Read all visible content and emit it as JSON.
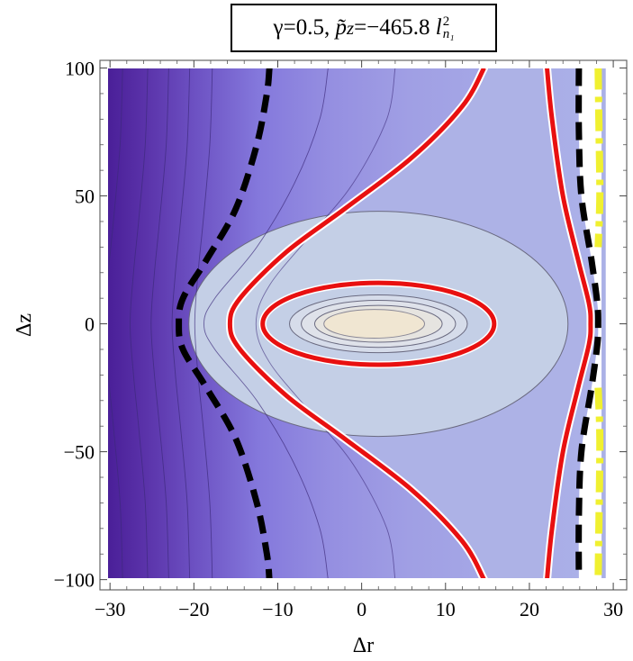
{
  "chart_data": {
    "type": "contour",
    "title": "γ=0.5, p̃z=−465.8 l²n₁",
    "title_parts": {
      "gamma": "γ=0.5,",
      "p": "p̃",
      "p_sub": "z",
      "p_value": "=−465.8",
      "l": "l",
      "l_sup": "2",
      "l_sub": "n₁"
    },
    "xlabel": "Δr",
    "ylabel": "Δz",
    "xlim": [
      -31.2,
      31.6
    ],
    "ylim": [
      -104,
      103
    ],
    "xticks": [
      {
        "v": -30,
        "label": "−30"
      },
      {
        "v": -20,
        "label": "−20"
      },
      {
        "v": -10,
        "label": "−10"
      },
      {
        "v": 0,
        "label": "0"
      },
      {
        "v": 10,
        "label": "10"
      },
      {
        "v": 20,
        "label": "20"
      },
      {
        "v": 30,
        "label": "30"
      }
    ],
    "yticks": [
      {
        "v": 100,
        "label": "100"
      },
      {
        "v": 50,
        "label": "50"
      },
      {
        "v": 0,
        "label": "0"
      },
      {
        "v": -50,
        "label": "−50"
      },
      {
        "v": -100,
        "label": "−100"
      }
    ],
    "colors": {
      "band_dark": "#4a22a0",
      "band_mid": "#8f86e0",
      "band_light": "#adb2e6",
      "band_center": "#c4cfe6",
      "core": "#f0e6d2",
      "red": "#e81010",
      "black": "#000000",
      "yellow": "#f0f030"
    },
    "curves": {
      "black_dashed_left": [
        [
          -11,
          100
        ],
        [
          -11.3,
          90
        ],
        [
          -12.5,
          70
        ],
        [
          -15,
          45
        ],
        [
          -18.5,
          25
        ],
        [
          -21.3,
          10
        ],
        [
          -21.8,
          0
        ],
        [
          -21.3,
          -10
        ],
        [
          -18.5,
          -25
        ],
        [
          -15,
          -45
        ],
        [
          -12.5,
          -70
        ],
        [
          -11.3,
          -90
        ],
        [
          -11,
          -100
        ]
      ],
      "red_outer_left": [
        [
          14.6,
          100
        ],
        [
          12,
          85
        ],
        [
          6,
          65
        ],
        [
          -2,
          45
        ],
        [
          -9,
          28
        ],
        [
          -14.5,
          10
        ],
        [
          -15.7,
          0
        ],
        [
          -14.5,
          -10
        ],
        [
          -9,
          -28
        ],
        [
          -2,
          -45
        ],
        [
          6,
          -65
        ],
        [
          12,
          -85
        ],
        [
          14.6,
          -100
        ]
      ],
      "red_outer_right": [
        [
          22.1,
          100
        ],
        [
          22.7,
          80
        ],
        [
          24,
          50
        ],
        [
          25.8,
          25
        ],
        [
          27.1,
          8
        ],
        [
          27.3,
          0
        ],
        [
          27.1,
          -8
        ],
        [
          25.8,
          -25
        ],
        [
          24,
          -50
        ],
        [
          22.7,
          -80
        ],
        [
          22.1,
          -100
        ]
      ],
      "black_dashed_right": [
        [
          25.9,
          100
        ],
        [
          25.9,
          75
        ],
        [
          26.2,
          50
        ],
        [
          27.4,
          25
        ],
        [
          28.1,
          8
        ],
        [
          28.2,
          0
        ],
        [
          28.1,
          -8
        ],
        [
          27.4,
          -25
        ],
        [
          26.2,
          -50
        ],
        [
          25.9,
          -75
        ],
        [
          25.9,
          -100
        ]
      ],
      "yellow_dashed_top": [
        [
          28.2,
          100
        ],
        [
          28.3,
          75
        ],
        [
          28.4,
          50
        ],
        [
          28.2,
          30
        ]
      ],
      "yellow_dashed_bottom": [
        [
          28.2,
          -25
        ],
        [
          28.4,
          -45
        ],
        [
          28.3,
          -75
        ],
        [
          28.2,
          -100
        ]
      ],
      "red_inner_ellipse": {
        "cx": 2.0,
        "cy": 0,
        "rx": 13.8,
        "ry": 16
      }
    },
    "contour_ellipses": [
      {
        "cx": 2.0,
        "cy": 0,
        "rx": 22.6,
        "ry": 44
      },
      {
        "cx": 2.0,
        "cy": 0,
        "rx": 10.6,
        "ry": 11.3
      },
      {
        "cx": 2.0,
        "cy": 0,
        "rx": 9.2,
        "ry": 9.2
      },
      {
        "cx": 2.0,
        "cy": 0,
        "rx": 7.6,
        "ry": 7.2
      },
      {
        "cx": 1.8,
        "cy": 0,
        "rx": 5.2,
        "ry": 5.0
      }
    ],
    "core_ellipse": {
      "cx": 1.5,
      "cy": 0,
      "rx": 6.0,
      "ry": 5.6
    },
    "left_contour_x": [
      -28,
      -25,
      -22.5,
      -20,
      -17.3
    ]
  }
}
